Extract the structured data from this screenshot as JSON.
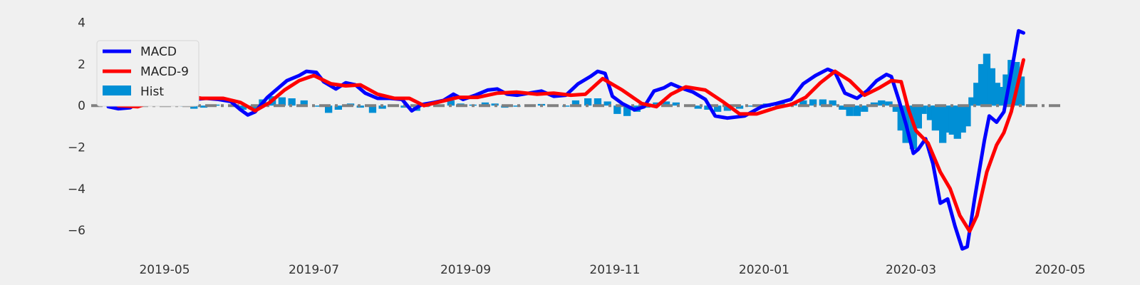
{
  "chart_data": {
    "type": "line",
    "title": "",
    "xlabel": "",
    "ylabel": "",
    "x_axis": {
      "min": "2019-04-01",
      "max": "2020-05-01",
      "ticks": [
        {
          "date": "2019-05-01",
          "label": "2019-05"
        },
        {
          "date": "2019-07-01",
          "label": "2019-07"
        },
        {
          "date": "2019-09-01",
          "label": "2019-09"
        },
        {
          "date": "2019-11-01",
          "label": "2019-11"
        },
        {
          "date": "2020-01-01",
          "label": "2020-01"
        },
        {
          "date": "2020-03-01",
          "label": "2020-03"
        },
        {
          "date": "2020-05-01",
          "label": "2020-05"
        }
      ]
    },
    "y_axis": {
      "min": -7.2,
      "max": 4.4,
      "ticks": [
        {
          "value": 4,
          "label": "4"
        },
        {
          "value": 2,
          "label": "2"
        },
        {
          "value": 0,
          "label": "0"
        },
        {
          "value": -2,
          "label": "−2"
        },
        {
          "value": -4,
          "label": "−4"
        },
        {
          "value": -6,
          "label": "−6"
        }
      ]
    },
    "grid": false,
    "legend_position": "top-left",
    "zero_line": {
      "value": 0,
      "style": "dash-dot",
      "color": "#808080"
    },
    "colors": {
      "macd": "#0000ff",
      "signal": "#ff0000",
      "hist": "#008fd5",
      "background": "#f0f0f0"
    },
    "series": [
      {
        "name": "MACD",
        "type": "line",
        "color": "#0000ff",
        "points": [
          [
            "2019-04-08",
            -0.05
          ],
          [
            "2019-04-12",
            -0.15
          ],
          [
            "2019-04-17",
            -0.1
          ],
          [
            "2019-04-20",
            0.15
          ],
          [
            "2019-04-25",
            0.55
          ],
          [
            "2019-04-29",
            0.75
          ],
          [
            "2019-05-02",
            0.8
          ],
          [
            "2019-05-05",
            0.7
          ],
          [
            "2019-05-08",
            0.45
          ],
          [
            "2019-05-13",
            0.3
          ],
          [
            "2019-05-18",
            0.35
          ],
          [
            "2019-05-23",
            0.3
          ],
          [
            "2019-05-28",
            0.2
          ],
          [
            "2019-06-01",
            -0.2
          ],
          [
            "2019-06-04",
            -0.45
          ],
          [
            "2019-06-07",
            -0.3
          ],
          [
            "2019-06-12",
            0.4
          ],
          [
            "2019-06-16",
            0.8
          ],
          [
            "2019-06-20",
            1.2
          ],
          [
            "2019-06-25",
            1.45
          ],
          [
            "2019-06-28",
            1.65
          ],
          [
            "2019-07-02",
            1.6
          ],
          [
            "2019-07-05",
            1.15
          ],
          [
            "2019-07-10",
            0.8
          ],
          [
            "2019-07-14",
            1.1
          ],
          [
            "2019-07-18",
            1.0
          ],
          [
            "2019-07-22",
            0.6
          ],
          [
            "2019-07-27",
            0.35
          ],
          [
            "2019-08-01",
            0.35
          ],
          [
            "2019-08-06",
            0.3
          ],
          [
            "2019-08-10",
            -0.25
          ],
          [
            "2019-08-14",
            0.05
          ],
          [
            "2019-08-19",
            0.15
          ],
          [
            "2019-08-23",
            0.25
          ],
          [
            "2019-08-27",
            0.55
          ],
          [
            "2019-08-31",
            0.3
          ],
          [
            "2019-09-05",
            0.5
          ],
          [
            "2019-09-10",
            0.75
          ],
          [
            "2019-09-14",
            0.8
          ],
          [
            "2019-09-18",
            0.55
          ],
          [
            "2019-09-22",
            0.5
          ],
          [
            "2019-09-27",
            0.6
          ],
          [
            "2019-10-02",
            0.7
          ],
          [
            "2019-10-07",
            0.45
          ],
          [
            "2019-10-12",
            0.5
          ],
          [
            "2019-10-17",
            1.05
          ],
          [
            "2019-10-22",
            1.4
          ],
          [
            "2019-10-25",
            1.65
          ],
          [
            "2019-10-28",
            1.55
          ],
          [
            "2019-10-31",
            0.45
          ],
          [
            "2019-11-04",
            0.1
          ],
          [
            "2019-11-09",
            -0.2
          ],
          [
            "2019-11-13",
            -0.05
          ],
          [
            "2019-11-17",
            0.7
          ],
          [
            "2019-11-21",
            0.85
          ],
          [
            "2019-11-24",
            1.05
          ],
          [
            "2019-11-28",
            0.85
          ],
          [
            "2019-12-03",
            0.65
          ],
          [
            "2019-12-08",
            0.3
          ],
          [
            "2019-12-12",
            -0.5
          ],
          [
            "2019-12-17",
            -0.6
          ],
          [
            "2019-12-24",
            -0.5
          ],
          [
            "2019-12-31",
            -0.05
          ],
          [
            "2020-01-06",
            0.1
          ],
          [
            "2020-01-12",
            0.3
          ],
          [
            "2020-01-17",
            1.05
          ],
          [
            "2020-01-22",
            1.45
          ],
          [
            "2020-01-27",
            1.75
          ],
          [
            "2020-01-30",
            1.6
          ],
          [
            "2020-02-03",
            0.6
          ],
          [
            "2020-02-08",
            0.35
          ],
          [
            "2020-02-12",
            0.7
          ],
          [
            "2020-02-16",
            1.2
          ],
          [
            "2020-02-20",
            1.5
          ],
          [
            "2020-02-22",
            1.4
          ],
          [
            "2020-02-25",
            0.3
          ],
          [
            "2020-02-28",
            -0.9
          ],
          [
            "2020-03-02",
            -2.3
          ],
          [
            "2020-03-04",
            -2.1
          ],
          [
            "2020-03-07",
            -1.6
          ],
          [
            "2020-03-10",
            -2.8
          ],
          [
            "2020-03-13",
            -4.7
          ],
          [
            "2020-03-16",
            -4.5
          ],
          [
            "2020-03-19",
            -5.8
          ],
          [
            "2020-03-22",
            -6.9
          ],
          [
            "2020-03-24",
            -6.8
          ],
          [
            "2020-03-27",
            -4.5
          ],
          [
            "2020-03-31",
            -1.7
          ],
          [
            "2020-04-02",
            -0.5
          ],
          [
            "2020-04-05",
            -0.8
          ],
          [
            "2020-04-08",
            -0.3
          ],
          [
            "2020-04-11",
            1.6
          ],
          [
            "2020-04-14",
            3.6
          ],
          [
            "2020-04-16",
            3.5
          ]
        ]
      },
      {
        "name": "MACD-9",
        "type": "line",
        "color": "#ff0000",
        "points": [
          [
            "2019-04-12",
            0.0
          ],
          [
            "2019-04-20",
            -0.05
          ],
          [
            "2019-04-29",
            0.3
          ],
          [
            "2019-05-07",
            0.55
          ],
          [
            "2019-05-16",
            0.35
          ],
          [
            "2019-05-25",
            0.35
          ],
          [
            "2019-06-01",
            0.15
          ],
          [
            "2019-06-07",
            -0.25
          ],
          [
            "2019-06-13",
            0.15
          ],
          [
            "2019-06-19",
            0.75
          ],
          [
            "2019-06-25",
            1.2
          ],
          [
            "2019-07-01",
            1.45
          ],
          [
            "2019-07-08",
            1.05
          ],
          [
            "2019-07-14",
            0.95
          ],
          [
            "2019-07-20",
            1.0
          ],
          [
            "2019-07-27",
            0.55
          ],
          [
            "2019-08-03",
            0.35
          ],
          [
            "2019-08-09",
            0.35
          ],
          [
            "2019-08-15",
            0.0
          ],
          [
            "2019-08-22",
            0.2
          ],
          [
            "2019-08-29",
            0.4
          ],
          [
            "2019-09-06",
            0.4
          ],
          [
            "2019-09-14",
            0.6
          ],
          [
            "2019-09-22",
            0.65
          ],
          [
            "2019-09-30",
            0.55
          ],
          [
            "2019-10-07",
            0.6
          ],
          [
            "2019-10-14",
            0.5
          ],
          [
            "2019-10-20",
            0.55
          ],
          [
            "2019-10-27",
            1.3
          ],
          [
            "2019-11-04",
            0.75
          ],
          [
            "2019-11-12",
            0.1
          ],
          [
            "2019-11-18",
            -0.05
          ],
          [
            "2019-11-24",
            0.55
          ],
          [
            "2019-11-30",
            0.9
          ],
          [
            "2019-12-08",
            0.75
          ],
          [
            "2019-12-15",
            0.2
          ],
          [
            "2019-12-22",
            -0.4
          ],
          [
            "2019-12-29",
            -0.4
          ],
          [
            "2020-01-06",
            -0.1
          ],
          [
            "2020-01-12",
            0.05
          ],
          [
            "2020-01-18",
            0.4
          ],
          [
            "2020-01-24",
            1.1
          ],
          [
            "2020-01-30",
            1.65
          ],
          [
            "2020-02-05",
            1.2
          ],
          [
            "2020-02-11",
            0.5
          ],
          [
            "2020-02-17",
            0.85
          ],
          [
            "2020-02-22",
            1.2
          ],
          [
            "2020-02-26",
            1.15
          ],
          [
            "2020-02-29",
            -0.2
          ],
          [
            "2020-03-03",
            -1.2
          ],
          [
            "2020-03-08",
            -1.8
          ],
          [
            "2020-03-13",
            -3.2
          ],
          [
            "2020-03-17",
            -4.0
          ],
          [
            "2020-03-21",
            -5.3
          ],
          [
            "2020-03-25",
            -6.05
          ],
          [
            "2020-03-28",
            -5.3
          ],
          [
            "2020-04-01",
            -3.2
          ],
          [
            "2020-04-05",
            -1.9
          ],
          [
            "2020-04-08",
            -1.3
          ],
          [
            "2020-04-11",
            -0.3
          ],
          [
            "2020-04-16",
            2.2
          ]
        ]
      },
      {
        "name": "Hist",
        "type": "bar",
        "color": "#008fd5",
        "points": [
          [
            "2019-04-22",
            0.12
          ],
          [
            "2019-04-26",
            0.15
          ],
          [
            "2019-04-30",
            0.15
          ],
          [
            "2019-05-04",
            0.12
          ],
          [
            "2019-05-09",
            -0.05
          ],
          [
            "2019-05-13",
            -0.15
          ],
          [
            "2019-05-17",
            -0.1
          ],
          [
            "2019-05-22",
            0.05
          ],
          [
            "2019-06-02",
            -0.2
          ],
          [
            "2019-06-06",
            -0.2
          ],
          [
            "2019-06-10",
            0.3
          ],
          [
            "2019-06-14",
            0.45
          ],
          [
            "2019-06-18",
            0.4
          ],
          [
            "2019-06-22",
            0.35
          ],
          [
            "2019-06-27",
            0.25
          ],
          [
            "2019-07-03",
            -0.05
          ],
          [
            "2019-07-07",
            -0.35
          ],
          [
            "2019-07-11",
            -0.2
          ],
          [
            "2019-07-16",
            0.1
          ],
          [
            "2019-07-20",
            -0.1
          ],
          [
            "2019-07-25",
            -0.35
          ],
          [
            "2019-07-29",
            -0.15
          ],
          [
            "2019-08-02",
            0.05
          ],
          [
            "2019-08-07",
            -0.1
          ],
          [
            "2019-08-12",
            -0.25
          ],
          [
            "2019-08-16",
            -0.05
          ],
          [
            "2019-08-21",
            0.05
          ],
          [
            "2019-08-26",
            0.25
          ],
          [
            "2019-08-30",
            0.1
          ],
          [
            "2019-09-04",
            0.05
          ],
          [
            "2019-09-09",
            0.15
          ],
          [
            "2019-09-13",
            0.1
          ],
          [
            "2019-09-17",
            -0.1
          ],
          [
            "2019-09-22",
            -0.05
          ],
          [
            "2019-09-27",
            0.05
          ],
          [
            "2019-10-02",
            0.08
          ],
          [
            "2019-10-07",
            -0.05
          ],
          [
            "2019-10-12",
            -0.05
          ],
          [
            "2019-10-16",
            0.25
          ],
          [
            "2019-10-21",
            0.35
          ],
          [
            "2019-10-25",
            0.35
          ],
          [
            "2019-10-29",
            0.2
          ],
          [
            "2019-11-02",
            -0.4
          ],
          [
            "2019-11-06",
            -0.5
          ],
          [
            "2019-11-10",
            -0.3
          ],
          [
            "2019-11-14",
            -0.1
          ],
          [
            "2019-11-18",
            0.15
          ],
          [
            "2019-11-22",
            0.2
          ],
          [
            "2019-11-26",
            0.15
          ],
          [
            "2019-12-01",
            -0.05
          ],
          [
            "2019-12-05",
            -0.15
          ],
          [
            "2019-12-09",
            -0.2
          ],
          [
            "2019-12-13",
            -0.3
          ],
          [
            "2019-12-17",
            -0.25
          ],
          [
            "2019-12-22",
            -0.15
          ],
          [
            "2019-12-27",
            -0.05
          ],
          [
            "2020-01-02",
            0.1
          ],
          [
            "2020-01-08",
            0.12
          ],
          [
            "2020-01-13",
            0.15
          ],
          [
            "2020-01-17",
            0.25
          ],
          [
            "2020-01-21",
            0.3
          ],
          [
            "2020-01-25",
            0.3
          ],
          [
            "2020-01-29",
            0.25
          ],
          [
            "2020-02-02",
            -0.2
          ],
          [
            "2020-02-05",
            -0.5
          ],
          [
            "2020-02-08",
            -0.5
          ],
          [
            "2020-02-11",
            -0.3
          ],
          [
            "2020-02-15",
            0.15
          ],
          [
            "2020-02-18",
            0.25
          ],
          [
            "2020-02-21",
            0.2
          ],
          [
            "2020-02-24",
            -0.3
          ],
          [
            "2020-02-26",
            -1.2
          ],
          [
            "2020-02-28",
            -1.8
          ],
          [
            "2020-03-02",
            -2.1
          ],
          [
            "2020-03-04",
            -1.1
          ],
          [
            "2020-03-06",
            -0.4
          ],
          [
            "2020-03-09",
            -0.7
          ],
          [
            "2020-03-11",
            -1.2
          ],
          [
            "2020-03-14",
            -1.8
          ],
          [
            "2020-03-16",
            -1.3
          ],
          [
            "2020-03-18",
            -1.4
          ],
          [
            "2020-03-20",
            -1.6
          ],
          [
            "2020-03-22",
            -1.3
          ],
          [
            "2020-03-24",
            -1.0
          ],
          [
            "2020-03-26",
            0.4
          ],
          [
            "2020-03-28",
            1.1
          ],
          [
            "2020-03-30",
            2.0
          ],
          [
            "2020-04-01",
            2.5
          ],
          [
            "2020-04-03",
            1.8
          ],
          [
            "2020-04-05",
            1.1
          ],
          [
            "2020-04-07",
            0.9
          ],
          [
            "2020-04-09",
            1.5
          ],
          [
            "2020-04-11",
            2.2
          ],
          [
            "2020-04-13",
            2.1
          ],
          [
            "2020-04-15",
            1.4
          ]
        ]
      }
    ]
  }
}
